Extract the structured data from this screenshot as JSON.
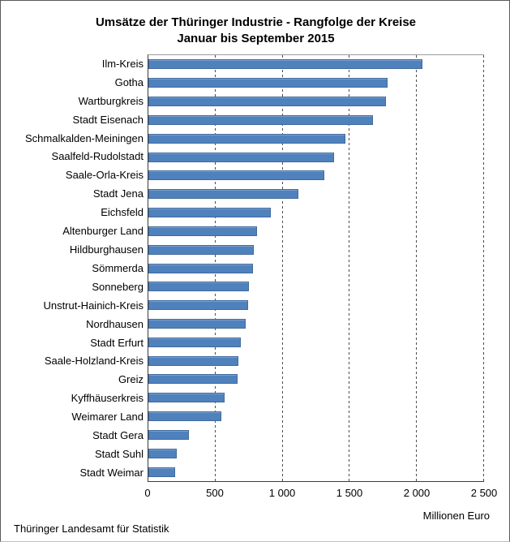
{
  "title": {
    "line1": "Umsätze der Thüringer Industrie - Rangfolge der Kreise",
    "line2": "Januar bis September 2015"
  },
  "source": "Thüringer Landesamt für Statistik",
  "axis": {
    "unit_label": "Millionen Euro",
    "ticks": [
      {
        "label": "0",
        "value": 0
      },
      {
        "label": "500",
        "value": 500
      },
      {
        "label": "1 000",
        "value": 1000
      },
      {
        "label": "1 500",
        "value": 1500
      },
      {
        "label": "2 000",
        "value": 2000
      },
      {
        "label": "2 500",
        "value": 2500
      }
    ]
  },
  "colors": {
    "bar": "#4f81bd",
    "bar_border": "#416a9b",
    "grid": "#4d4d4d"
  },
  "chart_data": {
    "type": "bar",
    "orientation": "horizontal",
    "title": "Umsätze der Thüringer Industrie - Rangfolge der Kreise",
    "subtitle": "Januar bis September 2015",
    "xlabel": "Millionen Euro",
    "ylabel": "",
    "xlim": [
      0,
      2500
    ],
    "grid": true,
    "categories": [
      "Ilm-Kreis",
      "Gotha",
      "Wartburgkreis",
      "Stadt Eisenach",
      "Schmalkalden-Meiningen",
      "Saalfeld-Rudolstadt",
      "Saale-Orla-Kreis",
      "Stadt Jena",
      "Eichsfeld",
      "Altenburger Land",
      "Hildburghausen",
      "Sömmerda",
      "Sonneberg",
      "Unstrut-Hainich-Kreis",
      "Nordhausen",
      "Stadt Erfurt",
      "Saale-Holzland-Kreis",
      "Greiz",
      "Kyffhäuserkreis",
      "Weimarer Land",
      "Stadt Gera",
      "Stadt Suhl",
      "Stadt Weimar"
    ],
    "values": [
      2040,
      1780,
      1770,
      1670,
      1470,
      1380,
      1310,
      1120,
      910,
      810,
      785,
      780,
      750,
      740,
      725,
      690,
      670,
      665,
      565,
      545,
      300,
      210,
      200
    ]
  }
}
